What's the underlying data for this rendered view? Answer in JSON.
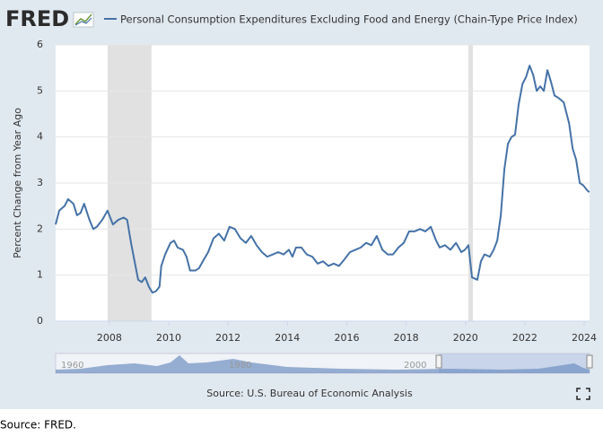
{
  "logo": "FRED",
  "chart_data": {
    "type": "line",
    "y_label": "Percent Change from Year Ago",
    "source": "Source: U.S. Bureau of Economic Analysis",
    "x": [
      2006.19,
      2006.31,
      2006.49,
      2006.61,
      2006.79,
      2006.91,
      2007.03,
      2007.15,
      2007.33,
      2007.46,
      2007.58,
      2007.76,
      2007.94,
      2008.12,
      2008.3,
      2008.48,
      2008.6,
      2008.73,
      2008.85,
      2008.97,
      2009.09,
      2009.21,
      2009.33,
      2009.45,
      2009.57,
      2009.69,
      2009.75,
      2009.88,
      2010.06,
      2010.18,
      2010.3,
      2010.48,
      2010.6,
      2010.72,
      2010.9,
      2011.02,
      2011.15,
      2011.33,
      2011.51,
      2011.69,
      2011.87,
      2012.05,
      2012.23,
      2012.42,
      2012.6,
      2012.78,
      2012.96,
      2013.14,
      2013.32,
      2013.51,
      2013.69,
      2013.87,
      2014.05,
      2014.17,
      2014.29,
      2014.47,
      2014.65,
      2014.84,
      2015.02,
      2015.2,
      2015.38,
      2015.56,
      2015.74,
      2015.93,
      2016.11,
      2016.29,
      2016.47,
      2016.65,
      2016.83,
      2017.01,
      2017.2,
      2017.38,
      2017.56,
      2017.74,
      2017.92,
      2018.1,
      2018.28,
      2018.47,
      2018.65,
      2018.83,
      2019.01,
      2019.13,
      2019.31,
      2019.49,
      2019.68,
      2019.86,
      2019.98,
      2020.1,
      2020.22,
      2020.4,
      2020.52,
      2020.64,
      2020.82,
      2020.95,
      2021.07,
      2021.19,
      2021.31,
      2021.43,
      2021.55,
      2021.67,
      2021.79,
      2021.92,
      2022.04,
      2022.16,
      2022.28,
      2022.4,
      2022.52,
      2022.64,
      2022.76,
      2022.88,
      2023.0,
      2023.13,
      2023.31,
      2023.49,
      2023.61,
      2023.73,
      2023.85,
      2023.97,
      2024.09,
      2024.17
    ],
    "series": [
      {
        "name": "Personal Consumption Expenditures Excluding Food and Energy (Chain-Type Price Index)",
        "color": "#4572a7",
        "values": [
          2.1,
          2.4,
          2.5,
          2.65,
          2.55,
          2.3,
          2.35,
          2.55,
          2.2,
          2.0,
          2.05,
          2.2,
          2.4,
          2.1,
          2.2,
          2.25,
          2.2,
          1.7,
          1.3,
          0.9,
          0.85,
          0.95,
          0.75,
          0.62,
          0.65,
          0.75,
          1.2,
          1.45,
          1.7,
          1.75,
          1.6,
          1.55,
          1.4,
          1.1,
          1.1,
          1.15,
          1.3,
          1.5,
          1.8,
          1.9,
          1.75,
          2.05,
          2.0,
          1.8,
          1.7,
          1.85,
          1.65,
          1.5,
          1.4,
          1.45,
          1.5,
          1.45,
          1.55,
          1.4,
          1.6,
          1.6,
          1.45,
          1.4,
          1.25,
          1.3,
          1.2,
          1.25,
          1.2,
          1.35,
          1.5,
          1.55,
          1.6,
          1.7,
          1.65,
          1.85,
          1.55,
          1.45,
          1.45,
          1.6,
          1.7,
          1.95,
          1.95,
          2.0,
          1.95,
          2.05,
          1.75,
          1.6,
          1.65,
          1.55,
          1.7,
          1.5,
          1.55,
          1.65,
          0.95,
          0.9,
          1.3,
          1.45,
          1.4,
          1.55,
          1.75,
          2.3,
          3.3,
          3.85,
          4.0,
          4.05,
          4.7,
          5.15,
          5.3,
          5.55,
          5.35,
          5.0,
          5.1,
          5.0,
          5.45,
          5.2,
          4.9,
          4.85,
          4.75,
          4.3,
          3.75,
          3.5,
          3.0,
          2.95,
          2.85,
          2.8
        ]
      }
    ],
    "recessions": [
      [
        2007.94,
        2009.42
      ],
      [
        2020.1,
        2020.25
      ]
    ],
    "xlim": [
      2006.19,
      2024.18
    ],
    "xticks": [
      2008,
      2010,
      2012,
      2014,
      2016,
      2018,
      2020,
      2022,
      2024
    ],
    "ylim": [
      0,
      6
    ],
    "yticks": [
      0,
      1,
      2,
      3,
      4,
      5,
      6
    ],
    "grid": true,
    "navigator_labels": [
      "1960",
      "1980",
      "2000"
    ]
  },
  "footer": "Source: FRED."
}
